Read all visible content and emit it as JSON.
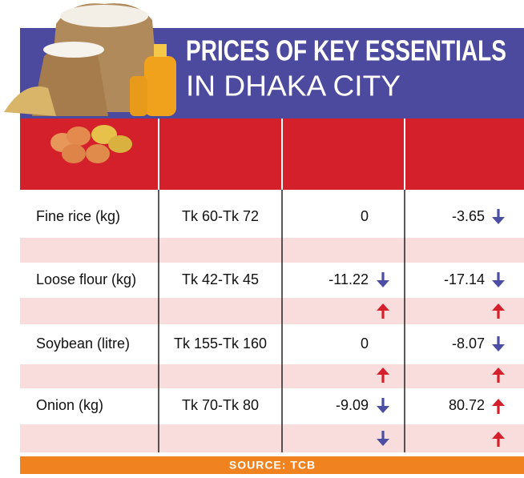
{
  "header": {
    "title": "PRICES OF KEY ESSENTIALS",
    "subtitle": "IN DHAKA CITY"
  },
  "table": {
    "rows": [
      [
        "Fine rice (kg)",
        "Tk 60-Tk 72",
        "0",
        "-3.65"
      ],
      [
        "Loose flour (kg)",
        "Tk 42-Tk 45",
        "-11.22",
        "-17.14"
      ],
      [
        "Soybean (litre)",
        "Tk 155-Tk 160",
        "0",
        "-8.07"
      ],
      [
        "Onion (kg)",
        "Tk 70-Tk 80",
        "-9.09",
        "80.72"
      ]
    ]
  },
  "source": "SOURCE: TCB"
}
